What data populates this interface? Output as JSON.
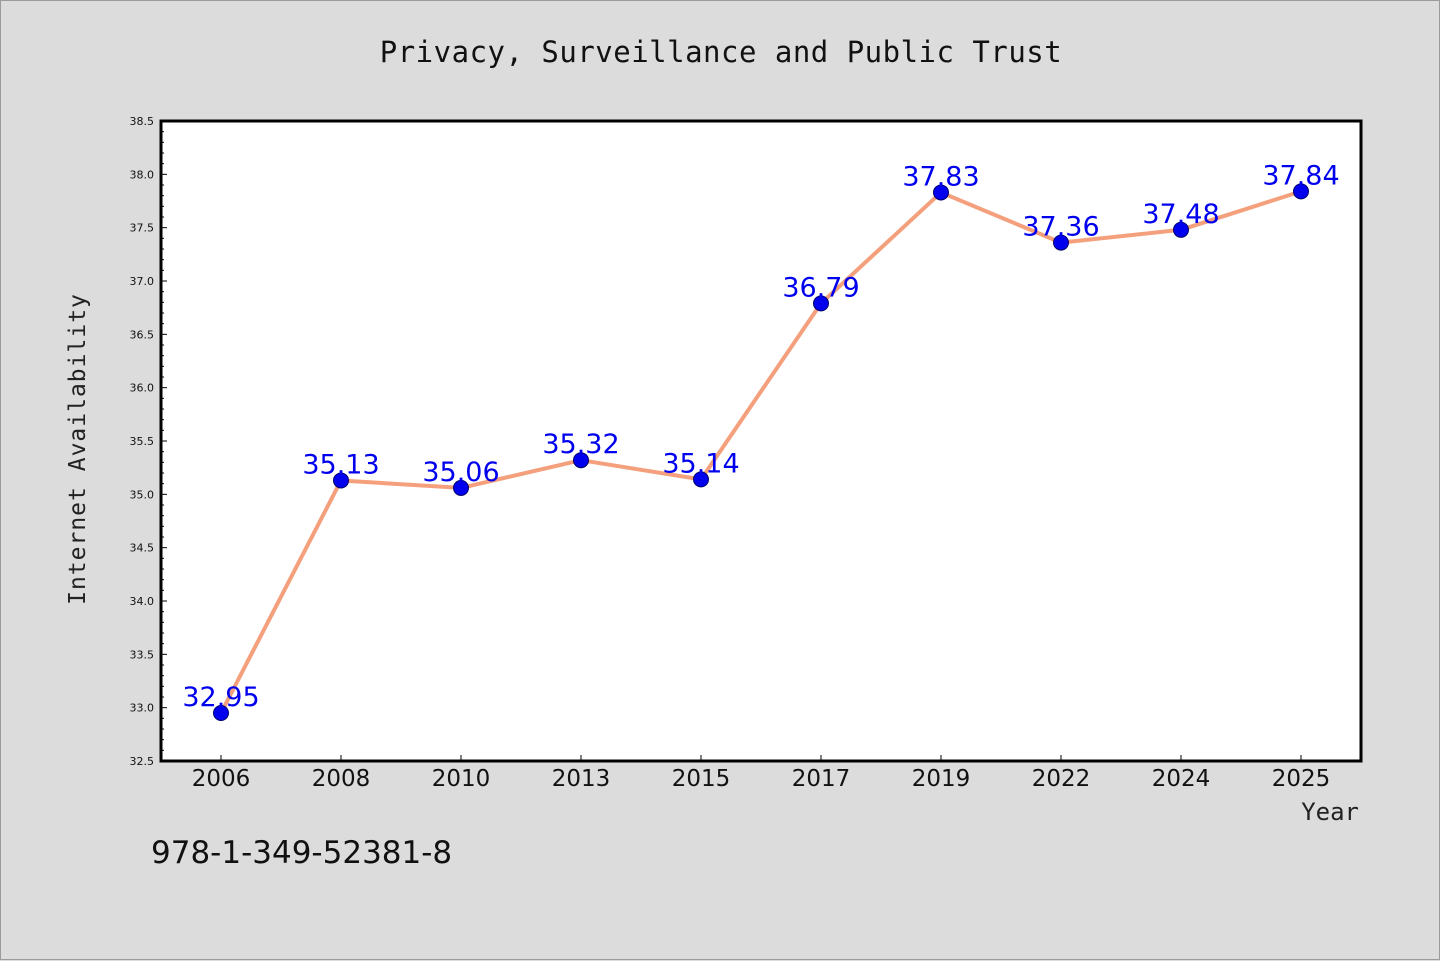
{
  "chart_data": {
    "type": "line",
    "title": "Privacy, Surveillance and Public Trust",
    "xlabel": "Year",
    "ylabel": "Internet Availability",
    "categories": [
      "2006",
      "2008",
      "2010",
      "2013",
      "2015",
      "2017",
      "2019",
      "2022",
      "2024",
      "2025"
    ],
    "series": [
      {
        "values": [
          32.95,
          35.13,
          35.06,
          35.32,
          35.14,
          36.79,
          37.83,
          37.36,
          37.48,
          37.84
        ],
        "line_color": "#f4a07c",
        "marker_color": "#0000ee"
      }
    ],
    "ylim": [
      32.5,
      38.5
    ],
    "yticks": [
      "32.5",
      "33.0",
      "33.5",
      "34.0",
      "34.5",
      "35.0",
      "35.5",
      "36.0",
      "36.5",
      "37.0",
      "37.5",
      "38.0",
      "38.5"
    ],
    "grid": false,
    "legend": "none"
  },
  "footer": {
    "isbn": "978-1-349-52381-8"
  }
}
